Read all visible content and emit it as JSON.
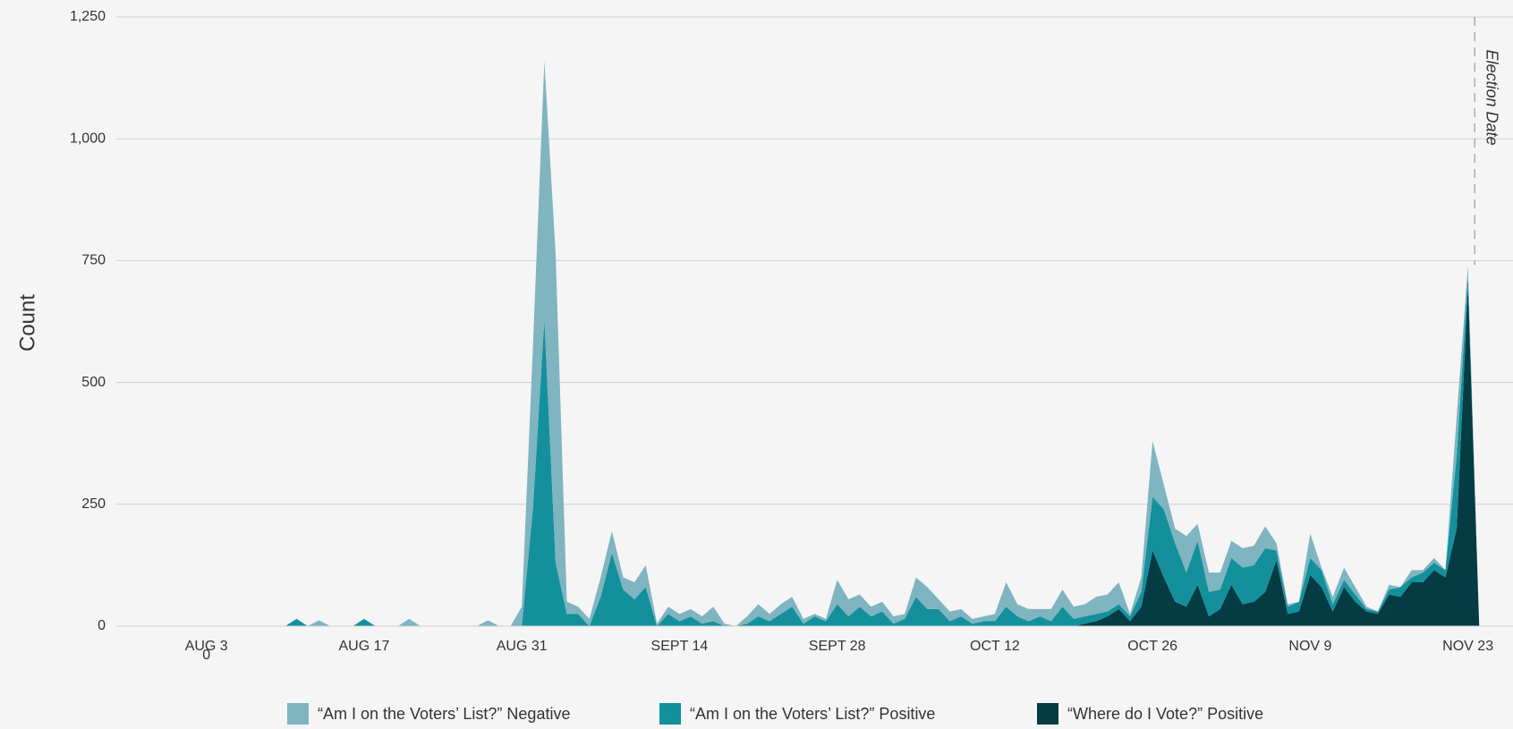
{
  "chart_data": {
    "type": "stacked_area",
    "y_label": "Count",
    "x": [
      1,
      2,
      3,
      4,
      5,
      6,
      7,
      8,
      9,
      10,
      11,
      12,
      13,
      14,
      15,
      16,
      17,
      18,
      19,
      20,
      21,
      22,
      23,
      24,
      25,
      26,
      27,
      28,
      29,
      30,
      31,
      32,
      33,
      34,
      35,
      36,
      37,
      38,
      39,
      40,
      41,
      42,
      43,
      44,
      45,
      46,
      47,
      48,
      49,
      50,
      51,
      52,
      53,
      54,
      55,
      56,
      57,
      58,
      59,
      60,
      61,
      62,
      63,
      64,
      65,
      66,
      67,
      68,
      69,
      70,
      71,
      72,
      73,
      74,
      75,
      76,
      77,
      78,
      79,
      80,
      81,
      82,
      83,
      84,
      85,
      86,
      87,
      88,
      89,
      90,
      91,
      92,
      93,
      94,
      95,
      96,
      97,
      98,
      99,
      100,
      101,
      102,
      103,
      104,
      105,
      106,
      107,
      108,
      109,
      110,
      111,
      112,
      113,
      114,
      115,
      116
    ],
    "series": [
      {
        "name": "“Am I on the Voters’ List?” Negative",
        "color": "#7fb4c1",
        "values": [
          0,
          0,
          0,
          0,
          0,
          0,
          0,
          0,
          0,
          0,
          0,
          0,
          12,
          0,
          0,
          0,
          0,
          0,
          0,
          0,
          15,
          0,
          0,
          0,
          0,
          0,
          0,
          12,
          0,
          0,
          40,
          335,
          530,
          635,
          25,
          15,
          15,
          40,
          45,
          25,
          35,
          45,
          5,
          15,
          15,
          15,
          15,
          30,
          5,
          0,
          15,
          25,
          15,
          20,
          20,
          10,
          5,
          5,
          50,
          35,
          25,
          20,
          20,
          15,
          10,
          40,
          45,
          20,
          20,
          15,
          10,
          10,
          15,
          50,
          25,
          25,
          15,
          25,
          35,
          25,
          25,
          35,
          35,
          45,
          5,
          30,
          115,
          50,
          30,
          75,
          35,
          40,
          35,
          35,
          40,
          40,
          45,
          15,
          5,
          0,
          50,
          5,
          15,
          25,
          15,
          5,
          0,
          10,
          0,
          15,
          5,
          10,
          0,
          80,
          20,
          0
        ]
      },
      {
        "name": "“Am I on the Voters’ List?” Positive",
        "color": "#13909b",
        "values": [
          0,
          0,
          0,
          0,
          0,
          0,
          0,
          0,
          0,
          0,
          15,
          0,
          0,
          0,
          0,
          0,
          15,
          0,
          0,
          0,
          0,
          0,
          0,
          0,
          0,
          0,
          0,
          0,
          0,
          0,
          0,
          245,
          630,
          130,
          25,
          25,
          0,
          60,
          150,
          75,
          55,
          80,
          0,
          25,
          10,
          20,
          5,
          10,
          0,
          0,
          5,
          20,
          10,
          25,
          40,
          5,
          20,
          10,
          45,
          20,
          40,
          20,
          30,
          5,
          15,
          60,
          35,
          35,
          10,
          20,
          5,
          10,
          10,
          40,
          20,
          10,
          20,
          10,
          40,
          15,
          15,
          15,
          10,
          10,
          10,
          30,
          110,
          140,
          120,
          70,
          90,
          50,
          40,
          55,
          75,
          75,
          90,
          20,
          15,
          20,
          35,
          35,
          15,
          15,
          15,
          5,
          5,
          10,
          20,
          10,
          20,
          15,
          15,
          150,
          20,
          0
        ]
      },
      {
        "name": "“Where do I Vote?” Positive",
        "color": "#053c44",
        "values": [
          0,
          0,
          0,
          0,
          0,
          0,
          0,
          0,
          0,
          0,
          0,
          0,
          0,
          0,
          0,
          0,
          0,
          0,
          0,
          0,
          0,
          0,
          0,
          0,
          0,
          0,
          0,
          0,
          0,
          0,
          0,
          0,
          0,
          0,
          0,
          0,
          0,
          0,
          0,
          0,
          0,
          0,
          0,
          0,
          0,
          0,
          0,
          0,
          0,
          0,
          0,
          0,
          0,
          0,
          0,
          0,
          0,
          0,
          0,
          0,
          0,
          0,
          0,
          0,
          0,
          0,
          0,
          0,
          0,
          0,
          0,
          0,
          0,
          0,
          0,
          0,
          0,
          0,
          0,
          0,
          5,
          10,
          20,
          35,
          10,
          40,
          155,
          100,
          50,
          40,
          85,
          20,
          35,
          85,
          45,
          50,
          70,
          135,
          25,
          30,
          105,
          80,
          30,
          80,
          50,
          30,
          25,
          65,
          60,
          90,
          90,
          115,
          100,
          200,
          700,
          0
        ]
      }
    ],
    "xlim": [
      -5,
      119
    ],
    "xticks": [
      {
        "value": 3,
        "label": "AUG 3"
      },
      {
        "value": 17,
        "label": "AUG 17"
      },
      {
        "value": 31,
        "label": "AUG 31"
      },
      {
        "value": 45,
        "label": "SEPT 14"
      },
      {
        "value": 59,
        "label": "SEPT 28"
      },
      {
        "value": 73,
        "label": "OCT 12"
      },
      {
        "value": 87,
        "label": "OCT 26"
      },
      {
        "value": 101,
        "label": "NOV 9"
      },
      {
        "value": 115,
        "label": "NOV 23"
      }
    ],
    "ylim": [
      0,
      1250
    ],
    "yticks": [
      0,
      250,
      500,
      750,
      {
        "value": 1000,
        "label": "1,000"
      },
      {
        "value": 1250,
        "label": "1,250"
      }
    ],
    "grid": true,
    "annotations": [
      {
        "x": 115.6,
        "text": "Election Date"
      }
    ],
    "x_axis_stray_label": {
      "x": 3,
      "text": "0"
    },
    "legend": "bottom"
  }
}
